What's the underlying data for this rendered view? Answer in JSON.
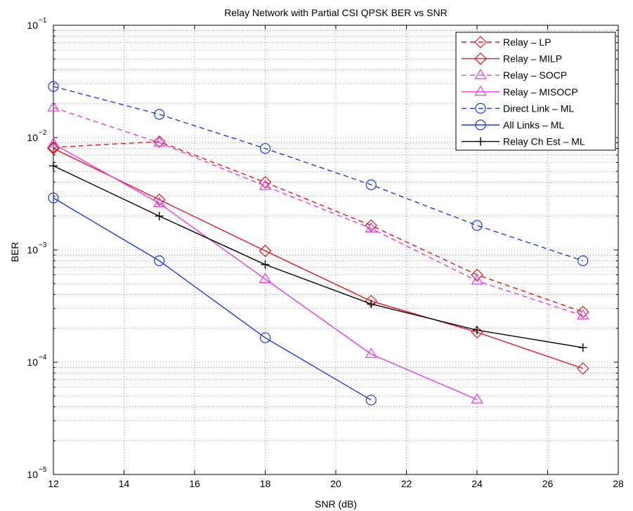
{
  "chart_data": {
    "type": "line",
    "title": "Relay Network with Partial CSI QPSK BER vs SNR",
    "xlabel": "SNR (dB)",
    "ylabel": "BER",
    "xlim": [
      12,
      28
    ],
    "ylim": [
      1e-05,
      0.1
    ],
    "yscale": "log",
    "grid": true,
    "legend_position": "top-right",
    "x_ticks": [
      12,
      14,
      16,
      18,
      20,
      22,
      24,
      26,
      28
    ],
    "y_ticks": [
      {
        "value": 1e-05,
        "base": "10",
        "exp": "−5"
      },
      {
        "value": 0.0001,
        "base": "10",
        "exp": "−4"
      },
      {
        "value": 0.001,
        "base": "10",
        "exp": "−3"
      },
      {
        "value": 0.01,
        "base": "10",
        "exp": "−2"
      },
      {
        "value": 0.1,
        "base": "10",
        "exp": "−1"
      }
    ],
    "series": [
      {
        "name": "Relay – LP",
        "color": "#e8141e",
        "dash": true,
        "marker": "diamond",
        "x": [
          12,
          15,
          18,
          21,
          24,
          27
        ],
        "y": [
          0.0082,
          0.0092,
          0.004,
          0.00165,
          0.0006,
          0.00028
        ]
      },
      {
        "name": "Relay – MILP",
        "color": "#e8141e",
        "dash": false,
        "marker": "diamond",
        "x": [
          12,
          15,
          18,
          21,
          24,
          27
        ],
        "y": [
          0.008,
          0.0028,
          0.00098,
          0.00035,
          0.000185,
          8.8e-05
        ]
      },
      {
        "name": "Relay – SOCP",
        "color": "#e83ce8",
        "dash": true,
        "marker": "triangle",
        "x": [
          12,
          15,
          18,
          21,
          24,
          27
        ],
        "y": [
          0.0185,
          0.009,
          0.0037,
          0.00155,
          0.00053,
          0.00026
        ]
      },
      {
        "name": "Relay – MISOCP",
        "color": "#e83ce8",
        "dash": false,
        "marker": "triangle",
        "x": [
          12,
          15,
          18,
          21,
          24
        ],
        "y": [
          0.0088,
          0.0026,
          0.00055,
          0.000118,
          4.65e-05
        ]
      },
      {
        "name": "Direct Link – ML",
        "color": "#1a3be8",
        "dash": true,
        "marker": "circle-minus",
        "x": [
          12,
          15,
          18,
          21,
          24,
          27
        ],
        "y": [
          0.0285,
          0.0161,
          0.008,
          0.0038,
          0.00165,
          0.0008
        ]
      },
      {
        "name": "All Links – ML",
        "color": "#1a3be8",
        "dash": false,
        "marker": "circle",
        "x": [
          12,
          15,
          18,
          21
        ],
        "y": [
          0.0029,
          0.0008,
          0.000165,
          4.6e-05
        ]
      },
      {
        "name": "Relay Ch Est – ML",
        "color": "#000000",
        "dash": false,
        "marker": "plus",
        "x": [
          12,
          15,
          18,
          21,
          24,
          27
        ],
        "y": [
          0.0056,
          0.002,
          0.00074,
          0.00033,
          0.000193,
          0.000135
        ]
      }
    ]
  }
}
